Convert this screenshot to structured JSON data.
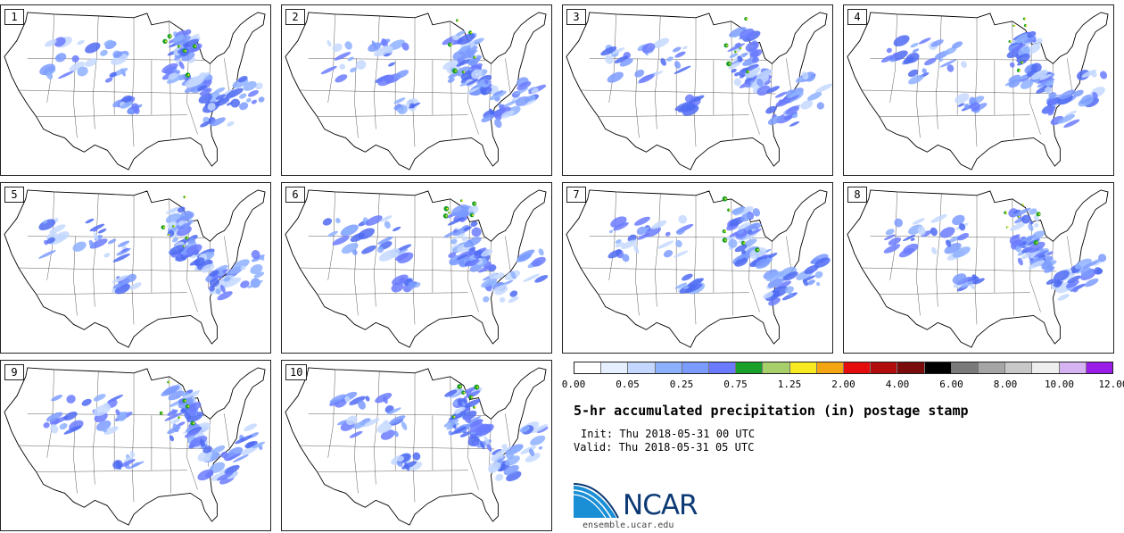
{
  "stamps": [
    "1",
    "2",
    "3",
    "4",
    "5",
    "6",
    "7",
    "8",
    "9",
    "10"
  ],
  "colorbar": {
    "colors": [
      "#ffffff",
      "#e6efff",
      "#c4d8ff",
      "#8db0ff",
      "#7b9bff",
      "#6b7bff",
      "#19a02a",
      "#a8d06a",
      "#f7ea22",
      "#f3a512",
      "#e40c0c",
      "#b30c0c",
      "#7a0c0c",
      "#000000",
      "#7a7a7a",
      "#a5a5a5",
      "#c8c8c8",
      "#eeeeee",
      "#d6b4f4",
      "#9a1ce8"
    ],
    "ticks": [
      "0.00",
      "0.05",
      "0.25",
      "0.75",
      "1.25",
      "2.00",
      "4.00",
      "6.00",
      "8.00",
      "10.00",
      "12.00"
    ]
  },
  "title": "5-hr accumulated precipitation (in) postage stamp",
  "init_line": "Init: Thu 2018-05-31 00 UTC",
  "valid_line": "Valid: Thu 2018-05-31 05 UTC",
  "logo_text": "NCAR",
  "url": "ensemble.ucar.edu"
}
